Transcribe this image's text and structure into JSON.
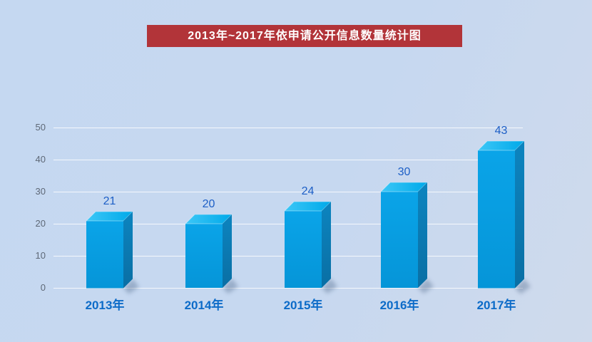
{
  "chart_data": {
    "type": "bar",
    "title": "2013年~2017年依申请公开信息数量统计图",
    "categories": [
      "2013年",
      "2014年",
      "2015年",
      "2016年",
      "2017年"
    ],
    "values": [
      21,
      20,
      24,
      30,
      43
    ],
    "xlabel": "",
    "ylabel": "",
    "ylim": [
      0,
      50
    ],
    "yticks": [
      0,
      10,
      20,
      30,
      40,
      50
    ],
    "grid": true,
    "legend": false,
    "style": "3d-box-bars",
    "colors": {
      "background": "#C5D8F1",
      "title_bg": "#B23439",
      "title_text": "#FFFFFF",
      "bar_front_light": "#0AA4E8",
      "bar_front_dark": "#0595D8",
      "bar_top_light": "#3CC7F7",
      "bar_top_dark": "#00A9E9",
      "bar_side_light": "#0C84BF",
      "bar_side_dark": "#0A6FA4",
      "edge_highlight": "rgba(255,255,255,0.4)",
      "shadow": "rgba(70,95,130,0.35)",
      "value_label": "#1D5FC6",
      "category_label": "#0C6BC8",
      "tick_label": "#5E6876",
      "gridline": "rgba(255,255,255,0.8)"
    }
  }
}
